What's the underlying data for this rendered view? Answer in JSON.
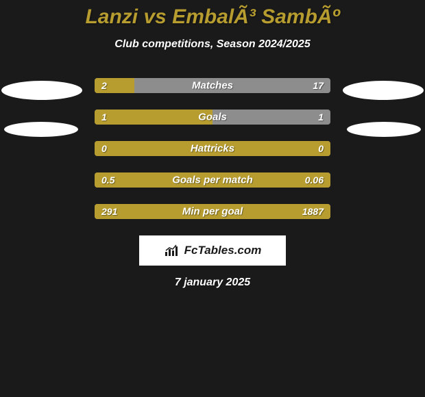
{
  "colors": {
    "page_bg": "#1a1a1a",
    "title": "#b79d2f",
    "subtitle": "#ffffff",
    "bar_primary": "#b79d2f",
    "bar_secondary": "#8d8d8d",
    "row_label": "#ffffff",
    "values": "#ffffff",
    "ellipse": "#ffffff",
    "fctables_bg": "#ffffff",
    "fctables_text": "#1a1a1a",
    "date": "#ffffff"
  },
  "title": "Lanzi vs EmbalÃ³ SambÃº",
  "subtitle": "Club competitions, Season 2024/2025",
  "rows": [
    {
      "label": "Matches",
      "left": "2",
      "right": "17",
      "left_pct": 0.17
    },
    {
      "label": "Goals",
      "left": "1",
      "right": "1",
      "left_pct": 0.5
    },
    {
      "label": "Hattricks",
      "left": "0",
      "right": "0",
      "left_pct": 1.0
    },
    {
      "label": "Goals per match",
      "left": "0.5",
      "right": "0.06",
      "left_pct": 1.0
    },
    {
      "label": "Min per goal",
      "left": "291",
      "right": "1887",
      "left_pct": 1.0
    }
  ],
  "fctables_label": "FcTables.com",
  "date": "7 january 2025"
}
